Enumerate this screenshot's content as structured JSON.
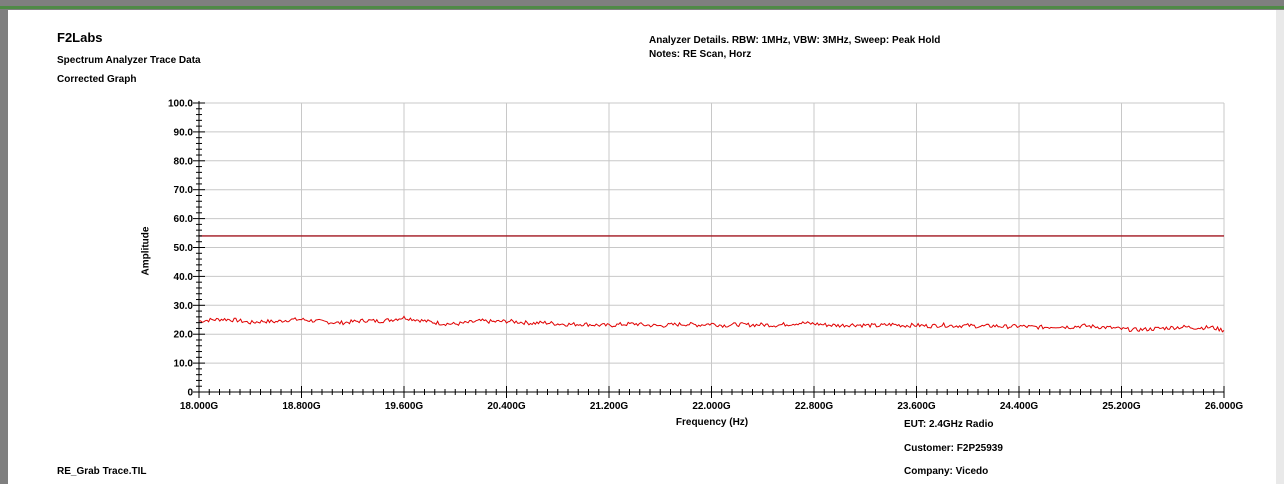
{
  "header": {
    "title": "F2Labs",
    "subtitle_1": "Spectrum Analyzer Trace Data",
    "subtitle_2": "Corrected Graph",
    "analyzer_details": "Analyzer Details.  RBW: 1MHz, VBW: 3MHz, Sweep: Peak Hold",
    "notes": "Notes:  RE Scan, Horz"
  },
  "footer": {
    "file_name": "RE_Grab Trace.TIL",
    "eut": "EUT: 2.4GHz Radio",
    "customer": "Customer: F2P25939",
    "company": "Company: Vicedo"
  },
  "colors": {
    "trace": "#e00000",
    "limit": "#a0141e",
    "grid": "#c8c8c8",
    "axis": "#000000",
    "frame_top": "#4f8a46"
  },
  "chart_data": {
    "type": "line",
    "title": "",
    "xlabel": "Frequency (Hz)",
    "ylabel": "Amplitude",
    "xlim": [
      18.0,
      26.0
    ],
    "ylim": [
      0,
      100
    ],
    "x_unit_label": "GHz",
    "x_ticks": [
      "18.000G",
      "18.800G",
      "19.600G",
      "20.400G",
      "21.200G",
      "22.000G",
      "22.800G",
      "23.600G",
      "24.400G",
      "25.200G",
      "26.000G"
    ],
    "y_ticks": [
      "0",
      "10.0",
      "20.0",
      "30.0",
      "40.0",
      "50.0",
      "60.0",
      "70.0",
      "80.0",
      "90.0",
      "100.0"
    ],
    "grid": true,
    "limit_line": {
      "value": 54.0
    },
    "series": [
      {
        "x": [
          18.0,
          18.1,
          18.2,
          18.3,
          18.4,
          18.5,
          18.6,
          18.7,
          18.8,
          18.9,
          19.0,
          19.1,
          19.2,
          19.3,
          19.4,
          19.5,
          19.6,
          19.7,
          19.8,
          19.9,
          20.0,
          20.1,
          20.2,
          20.3,
          20.4,
          20.5,
          20.6,
          20.7,
          20.8,
          20.9,
          21.0,
          21.1,
          21.2,
          21.3,
          21.4,
          21.5,
          21.6,
          21.7,
          21.8,
          21.9,
          22.0,
          22.1,
          22.2,
          22.3,
          22.4,
          22.5,
          22.6,
          22.7,
          22.8,
          22.9,
          23.0,
          23.1,
          23.2,
          23.3,
          23.4,
          23.5,
          23.6,
          23.7,
          23.8,
          23.9,
          24.0,
          24.1,
          24.2,
          24.3,
          24.4,
          24.5,
          24.6,
          24.7,
          24.8,
          24.9,
          25.0,
          25.1,
          25.2,
          25.3,
          25.4,
          25.5,
          25.6,
          25.7,
          25.8,
          25.9,
          26.0
        ],
        "values": [
          24.5,
          25.0,
          25.2,
          24.8,
          24.0,
          24.5,
          24.3,
          25.0,
          25.1,
          24.6,
          24.2,
          23.9,
          24.3,
          24.8,
          24.5,
          25.0,
          25.8,
          25.0,
          24.3,
          23.7,
          23.5,
          24.0,
          24.6,
          24.3,
          24.5,
          24.2,
          23.8,
          24.0,
          23.6,
          23.4,
          23.5,
          23.2,
          23.0,
          23.4,
          23.6,
          23.1,
          22.9,
          23.3,
          23.5,
          23.2,
          23.6,
          23.0,
          23.4,
          23.2,
          23.3,
          23.1,
          23.5,
          23.9,
          23.6,
          23.2,
          23.0,
          23.3,
          23.1,
          22.9,
          23.4,
          23.0,
          23.1,
          22.8,
          23.2,
          22.9,
          23.0,
          22.7,
          22.9,
          22.6,
          22.8,
          22.5,
          22.4,
          22.7,
          22.5,
          22.9,
          22.6,
          22.3,
          21.8,
          21.5,
          21.7,
          22.0,
          22.3,
          22.5,
          22.2,
          22.4,
          21.3
        ]
      }
    ]
  }
}
